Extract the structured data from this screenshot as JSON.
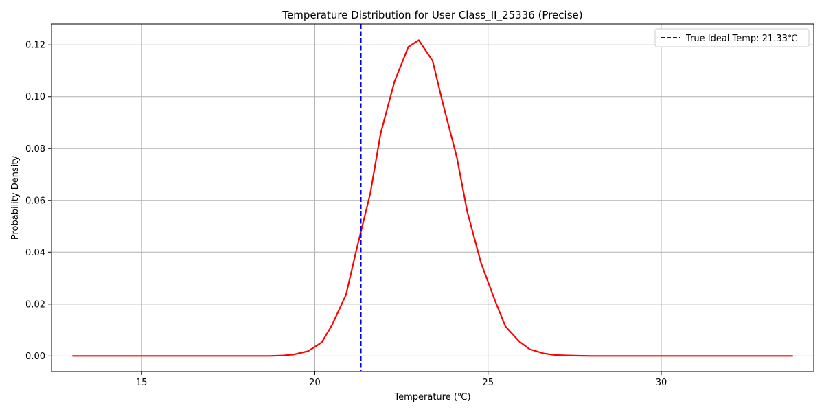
{
  "chart_data": {
    "type": "line",
    "title": "Temperature Distribution for User Class_II_25336 (Precise)",
    "xlabel": "Temperature (℃)",
    "ylabel": "Probability Density",
    "xlim": [
      12.4,
      34.4
    ],
    "ylim": [
      -0.006,
      0.128
    ],
    "x_ticks": [
      15,
      20,
      25,
      30
    ],
    "x_tick_labels": [
      "15",
      "20",
      "25",
      "30"
    ],
    "y_ticks": [
      0.0,
      0.02,
      0.04,
      0.06,
      0.08,
      0.1,
      0.12
    ],
    "y_tick_labels": [
      "0.00",
      "0.02",
      "0.04",
      "0.06",
      "0.08",
      "0.10",
      "0.12"
    ],
    "grid": true,
    "legend_position": "top-right",
    "series": [
      {
        "name": "",
        "color": "#ff0000",
        "x": [
          13.0,
          18.7,
          19.1,
          19.4,
          19.8,
          20.2,
          20.5,
          20.9,
          21.2,
          21.6,
          21.9,
          22.3,
          22.7,
          23.0,
          23.4,
          23.7,
          24.1,
          24.4,
          24.8,
          25.2,
          25.5,
          25.9,
          26.2,
          26.6,
          26.9,
          27.3,
          27.6,
          28.0,
          33.8
        ],
        "y": [
          0.0,
          0.0,
          0.0002,
          0.0006,
          0.0018,
          0.0052,
          0.012,
          0.0236,
          0.0408,
          0.0626,
          0.0858,
          0.1058,
          0.1192,
          0.1218,
          0.1138,
          0.0972,
          0.0766,
          0.0556,
          0.0358,
          0.0214,
          0.0114,
          0.0056,
          0.0026,
          0.001,
          0.0004,
          0.0002,
          0.0001,
          0.0,
          0.0
        ]
      }
    ],
    "vlines": [
      {
        "x": 21.33,
        "color": "#0000ff",
        "style": "dashed",
        "label": "True Ideal Temp: 21.33℃"
      }
    ]
  }
}
